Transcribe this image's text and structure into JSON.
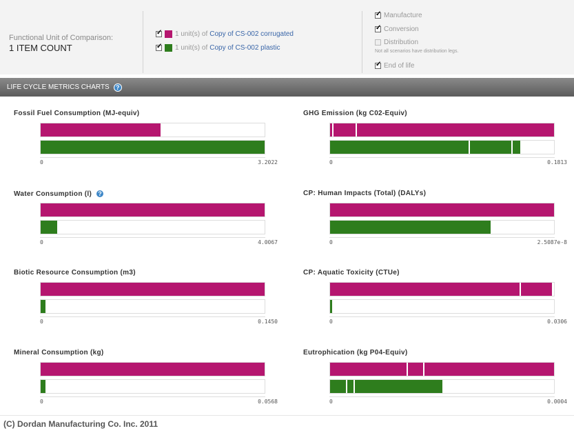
{
  "functional_unit": {
    "label": "Functional Unit of Comparison:",
    "value": "1 ITEM COUNT"
  },
  "scenarios": [
    {
      "prefix": "1 unit(s) of",
      "link": "Copy of CS-002 corrugated",
      "color": "#b5166f",
      "checked": true
    },
    {
      "prefix": "1 unit(s) of",
      "link": "Copy of CS-002 plastic",
      "color": "#2e7d1d",
      "checked": true
    }
  ],
  "stages": [
    {
      "label": "Manufacture",
      "checked": true,
      "disabled": false
    },
    {
      "label": "Conversion",
      "checked": true,
      "disabled": false
    },
    {
      "label": "Distribution",
      "checked": false,
      "disabled": true
    },
    {
      "label": "End of life",
      "checked": true,
      "disabled": false
    }
  ],
  "distribution_note": "Not all scenarios have distribution legs.",
  "section_title": "LIFE CYCLE METRICS CHARTS",
  "help_glyph": "?",
  "colors": {
    "corrugated": "#b5166f",
    "plastic": "#2e7d1d"
  },
  "chart_data": [
    {
      "type": "bar",
      "title": "Fossil Fuel Consumption (MJ-equiv)",
      "xlim": [
        0,
        3.2022
      ],
      "tick_min": "0",
      "tick_max": "3.2022",
      "help": false,
      "series": [
        {
          "name": "Copy of CS-002 corrugated",
          "value": 1.71,
          "segments": []
        },
        {
          "name": "Copy of CS-002 plastic",
          "value": 3.2022,
          "segments": []
        }
      ]
    },
    {
      "type": "bar",
      "title": "GHG Emission (kg C02-Equiv)",
      "xlim": [
        0,
        0.1813
      ],
      "tick_min": "0",
      "tick_max": "0.1813",
      "help": false,
      "series": [
        {
          "name": "Copy of CS-002 corrugated",
          "value": 0.1813,
          "segments": [
            0.0018,
            0.0205
          ]
        },
        {
          "name": "Copy of CS-002 plastic",
          "value": 0.154,
          "segments": [
            0.1121,
            0.1468
          ]
        }
      ]
    },
    {
      "type": "bar",
      "title": "Water Consumption (l)",
      "xlim": [
        0,
        4.0067
      ],
      "tick_min": "0",
      "tick_max": "4.0067",
      "help": true,
      "series": [
        {
          "name": "Copy of CS-002 corrugated",
          "value": 4.0067,
          "segments": []
        },
        {
          "name": "Copy of CS-002 plastic",
          "value": 0.29,
          "segments": []
        }
      ]
    },
    {
      "type": "bar",
      "title": "CP: Human Impacts (Total) (DALYs)",
      "xlim": [
        0,
        2.5087e-08
      ],
      "tick_min": "0",
      "tick_max": "2.5087e-8",
      "help": false,
      "series": [
        {
          "name": "Copy of CS-002 corrugated",
          "value": 2.5087e-08,
          "segments": []
        },
        {
          "name": "Copy of CS-002 plastic",
          "value": 1.8e-08,
          "segments": []
        }
      ]
    },
    {
      "type": "bar",
      "title": "Biotic Resource Consumption (m3)",
      "xlim": [
        0,
        0.145
      ],
      "tick_min": "0",
      "tick_max": "0.1450",
      "help": false,
      "series": [
        {
          "name": "Copy of CS-002 corrugated",
          "value": 0.145,
          "segments": []
        },
        {
          "name": "Copy of CS-002 plastic",
          "value": 0.003,
          "segments": []
        }
      ]
    },
    {
      "type": "bar",
      "title": "CP: Aquatic Toxicity (CTUe)",
      "xlim": [
        0,
        0.0306
      ],
      "tick_min": "0",
      "tick_max": "0.0306",
      "help": false,
      "series": [
        {
          "name": "Copy of CS-002 corrugated",
          "value": 0.0303,
          "segments": [
            0.0259
          ]
        },
        {
          "name": "Copy of CS-002 plastic",
          "value": 0.0003,
          "segments": []
        }
      ]
    },
    {
      "type": "bar",
      "title": "Mineral Consumption (kg)",
      "xlim": [
        0,
        0.0568
      ],
      "tick_min": "0",
      "tick_max": "0.0568",
      "help": false,
      "series": [
        {
          "name": "Copy of CS-002 corrugated",
          "value": 0.0568,
          "segments": []
        },
        {
          "name": "Copy of CS-002 plastic",
          "value": 0.0013,
          "segments": []
        }
      ]
    },
    {
      "type": "bar",
      "title": "Eutrophication (kg P04-Equiv)",
      "xlim": [
        0,
        0.0004
      ],
      "tick_min": "0",
      "tick_max": "0.0004",
      "help": false,
      "series": [
        {
          "name": "Copy of CS-002 corrugated",
          "value": 0.0004,
          "segments": [
            0.000137,
            0.000166
          ]
        },
        {
          "name": "Copy of CS-002 plastic",
          "value": 0.0002,
          "segments": [
            2.8e-05,
            4.2e-05
          ]
        }
      ]
    }
  ],
  "footer": "(C) Dordan Manufacturing Co. Inc. 2011"
}
